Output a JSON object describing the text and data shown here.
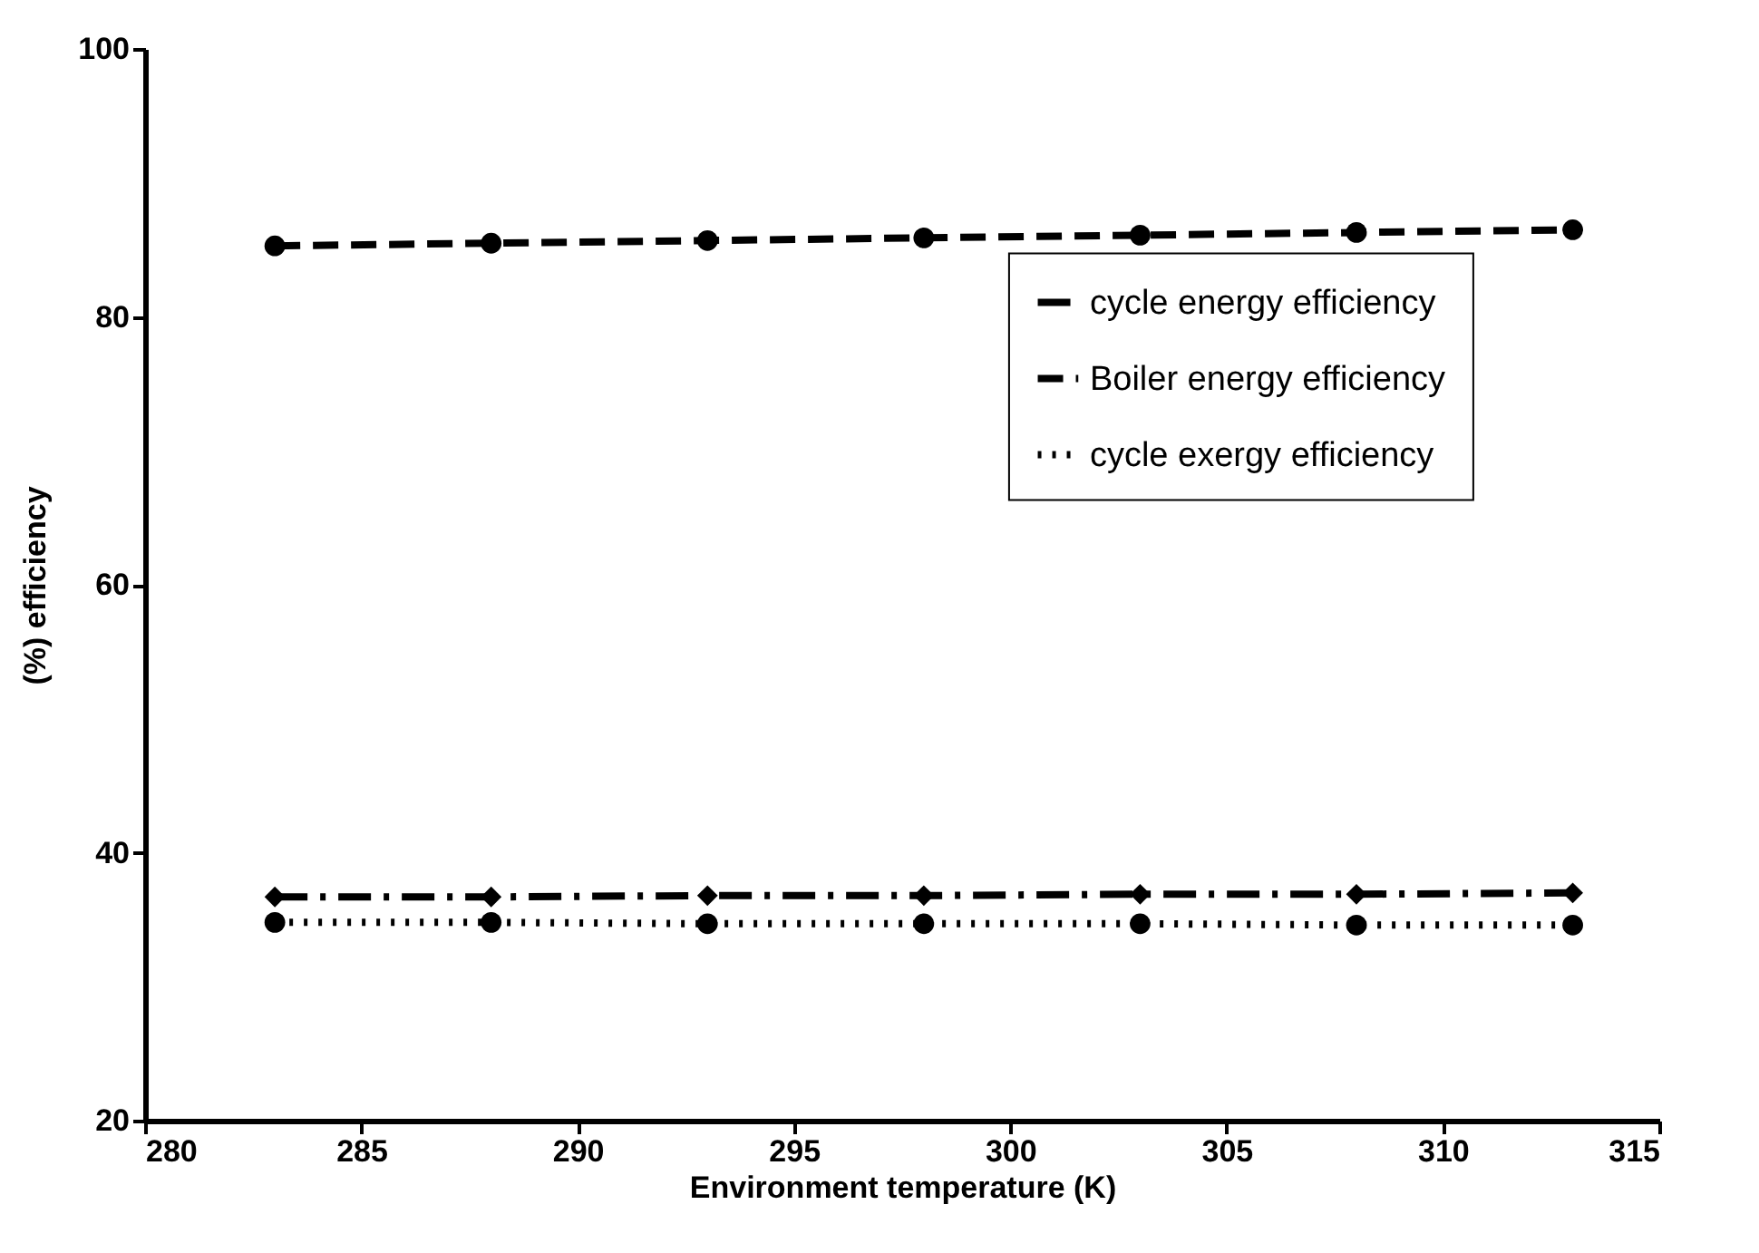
{
  "chart_data": {
    "type": "line",
    "xlabel": "Environment temperature (K)",
    "ylabel": "(%)  efficiency",
    "x": [
      283,
      288,
      293,
      298,
      303,
      308,
      313
    ],
    "xlim": [
      280,
      315
    ],
    "xticks": [
      280,
      285,
      290,
      295,
      300,
      305,
      310,
      315
    ],
    "ylim": [
      20,
      100
    ],
    "yticks": [
      20,
      40,
      60,
      80,
      100
    ],
    "grid": false,
    "legend": "top right",
    "series": [
      {
        "name": "cycle energy efficiency",
        "color": "#000000",
        "marker": "diamond",
        "line_style": "dashdot",
        "values": [
          36.7,
          36.7,
          36.8,
          36.8,
          36.9,
          36.9,
          37.0
        ]
      },
      {
        "name": "Boiler energy efficiency",
        "color": "#000000",
        "marker": "circle",
        "line_style": "dashed",
        "values": [
          85.3,
          85.5,
          85.7,
          85.9,
          86.1,
          86.3,
          86.5
        ]
      },
      {
        "name": "cycle exergy efficiency",
        "color": "#000000",
        "marker": "circle",
        "line_style": "dotted",
        "values": [
          34.8,
          34.8,
          34.7,
          34.7,
          34.7,
          34.6,
          34.6
        ]
      }
    ]
  }
}
